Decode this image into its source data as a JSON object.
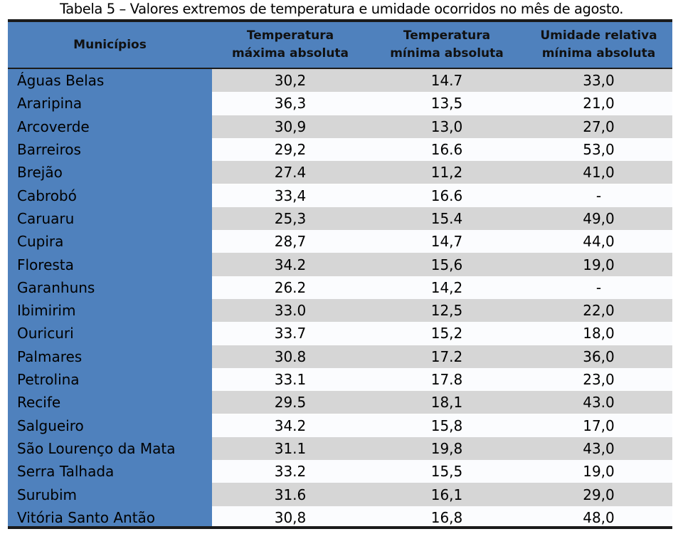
{
  "caption": "Tabela 5 – Valores extremos de temperatura e umidade ocorridos no mês de agosto.",
  "headers": {
    "municipios": "Municípios",
    "tmax_line1": "Temperatura",
    "tmax_line2": "máxima absoluta",
    "tmin_line1": "Temperatura",
    "tmin_line2": "mínima absoluta",
    "umid_line1": "Umidade relativa",
    "umid_line2": "mínima absoluta"
  },
  "colors": {
    "header_blue": "#4f81bd",
    "row_shade": "#d6d6d6",
    "border": "#1b1b1b"
  },
  "rows": [
    {
      "name": "Águas Belas",
      "tmax": "30,2",
      "tmin": "14.7",
      "umid": "33,0"
    },
    {
      "name": "Araripina",
      "tmax": "36,3",
      "tmin": "13,5",
      "umid": "21,0"
    },
    {
      "name": "Arcoverde",
      "tmax": "30,9",
      "tmin": "13,0",
      "umid": "27,0"
    },
    {
      "name": "Barreiros",
      "tmax": "29,2",
      "tmin": "16.6",
      "umid": "53,0"
    },
    {
      "name": "Brejão",
      "tmax": "27.4",
      "tmin": "11,2",
      "umid": "41,0"
    },
    {
      "name": "Cabrobó",
      "tmax": "33,4",
      "tmin": "16.6",
      "umid": "-"
    },
    {
      "name": "Caruaru",
      "tmax": "25,3",
      "tmin": "15.4",
      "umid": "49,0"
    },
    {
      "name": "Cupira",
      "tmax": "28,7",
      "tmin": "14,7",
      "umid": "44,0"
    },
    {
      "name": "Floresta",
      "tmax": "34.2",
      "tmin": "15,6",
      "umid": "19,0"
    },
    {
      "name": "Garanhuns",
      "tmax": "26.2",
      "tmin": "14,2",
      "umid": "-"
    },
    {
      "name": "Ibimirim",
      "tmax": "33.0",
      "tmin": "12,5",
      "umid": "22,0"
    },
    {
      "name": "Ouricuri",
      "tmax": "33.7",
      "tmin": "15,2",
      "umid": "18,0"
    },
    {
      "name": "Palmares",
      "tmax": "30.8",
      "tmin": "17.2",
      "umid": "36,0"
    },
    {
      "name": "Petrolina",
      "tmax": "33.1",
      "tmin": "17.8",
      "umid": "23,0"
    },
    {
      "name": "Recife",
      "tmax": "29.5",
      "tmin": "18,1",
      "umid": "43.0"
    },
    {
      "name": "Salgueiro",
      "tmax": "34.2",
      "tmin": "15,8",
      "umid": "17,0"
    },
    {
      "name": "São Lourenço da Mata",
      "tmax": "31.1",
      "tmin": "19,8",
      "umid": "43,0"
    },
    {
      "name": "Serra Talhada",
      "tmax": "33.2",
      "tmin": "15,5",
      "umid": "19,0"
    },
    {
      "name": "Surubim",
      "tmax": "31.6",
      "tmin": "16,1",
      "umid": "29,0"
    },
    {
      "name": "Vitória Santo Antão",
      "tmax": "30,8",
      "tmin": "16,8",
      "umid": "48,0"
    }
  ]
}
